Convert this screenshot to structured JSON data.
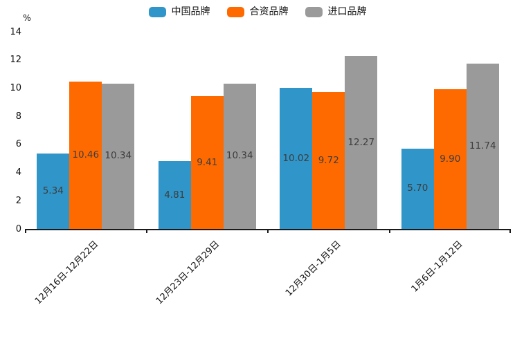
{
  "chart_data": {
    "type": "bar",
    "title": "",
    "ylabel": "%",
    "xlabel": "",
    "ylim": [
      0,
      14
    ],
    "yticks": [
      0,
      2,
      4,
      6,
      8,
      10,
      12,
      14
    ],
    "grid": false,
    "legend_position": "top",
    "x_tick_rotation": -45,
    "value_label_decimals": 2,
    "categories": [
      "12月16日-12月22日",
      "12月23日-12月29日",
      "12月30日-1月5日",
      "1月6日-1月12日"
    ],
    "series": [
      {
        "name": "中国品牌",
        "color": "#3095C8",
        "values": [
          5.34,
          4.81,
          10.02,
          5.7
        ]
      },
      {
        "name": "合资品牌",
        "color": "#FF6A00",
        "values": [
          10.46,
          9.41,
          9.72,
          9.9
        ]
      },
      {
        "name": "进口品牌",
        "color": "#9A9A9A",
        "values": [
          10.34,
          10.34,
          12.27,
          11.74
        ]
      }
    ],
    "colors": {
      "series1": "#3095C8",
      "series2": "#FF6A00",
      "series3": "#9A9A9A",
      "axis": "#1a1a1a",
      "bar_label": "#3d3d3d"
    }
  }
}
